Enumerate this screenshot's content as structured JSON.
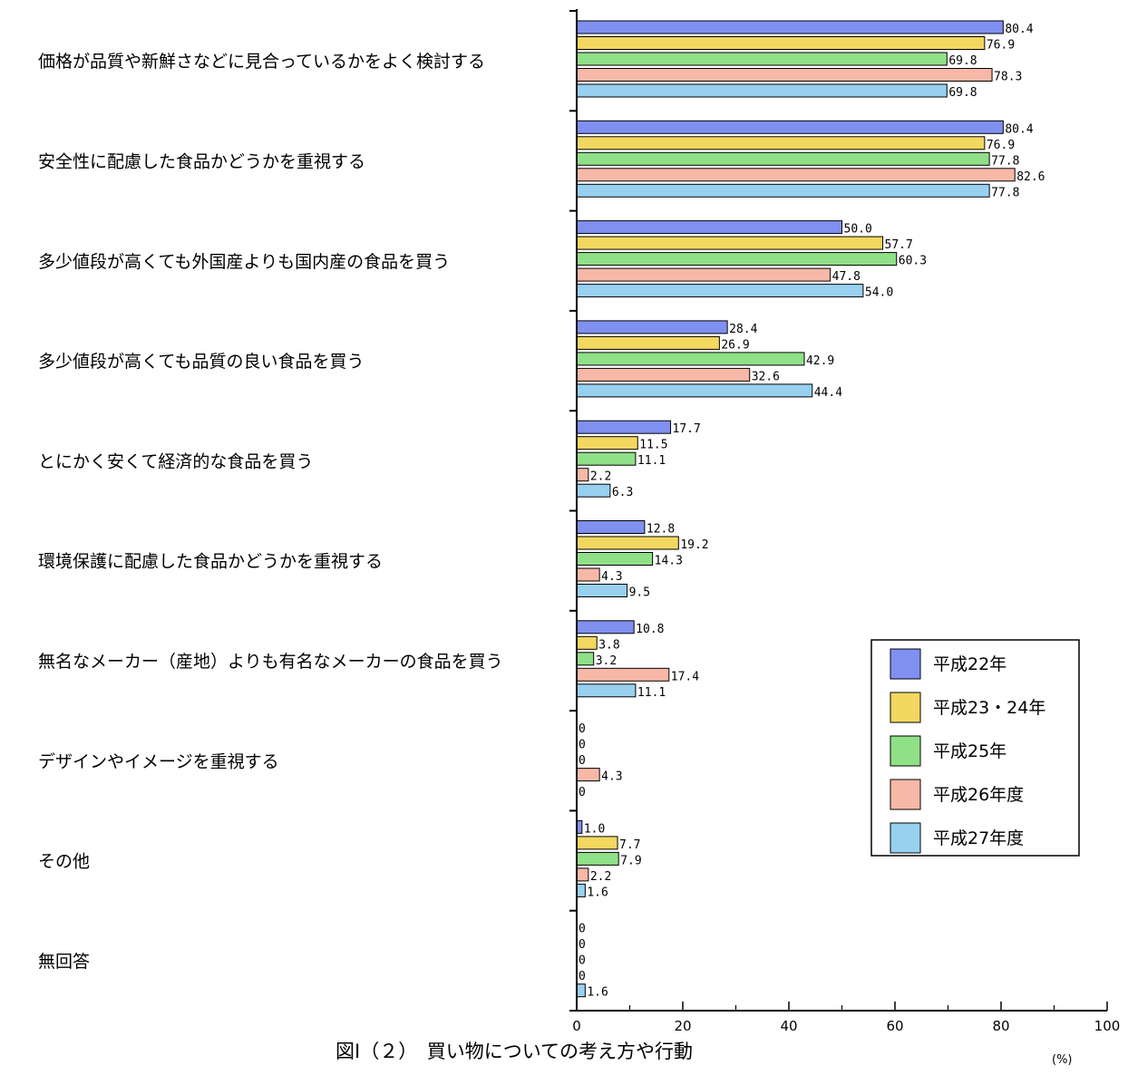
{
  "chart_data": {
    "type": "bar",
    "orientation": "horizontal",
    "title": "図Ⅰ（２）　買い物についての考え方や行動",
    "unit_label": "(%)",
    "xlim": [
      0,
      100
    ],
    "x_ticks": [
      "0",
      "20",
      "40",
      "60",
      "80",
      "100"
    ],
    "grid": false,
    "legend_position": "right",
    "categories": [
      "価格が品質や新鮮さなどに見合っているかをよく検討する",
      "安全性に配慮した食品かどうかを重視する",
      "多少値段が高くても外国産よりも国内産の食品を買う",
      "多少値段が高くても品質の良い食品を買う",
      "とにかく安くて経済的な食品を買う",
      "環境保護に配慮した食品かどうかを重視する",
      "無名なメーカー（産地）よりも有名なメーカーの食品を買う",
      "デザインやイメージを重視する",
      "その他",
      "無回答"
    ],
    "series": [
      {
        "name": "平成22年",
        "color": "#8090f0",
        "values": [
          80.4,
          80.4,
          50.0,
          28.4,
          17.7,
          12.8,
          10.8,
          0,
          1.0,
          0
        ],
        "labels": [
          "80.4",
          "80.4",
          "50.0",
          "28.4",
          "17.7",
          "12.8",
          "10.8",
          "0",
          "1.0",
          "0"
        ]
      },
      {
        "name": "平成23・24年",
        "color": "#f2d860",
        "values": [
          76.9,
          76.9,
          57.7,
          26.9,
          11.5,
          19.2,
          3.8,
          0,
          7.7,
          0
        ],
        "labels": [
          "76.9",
          "76.9",
          "57.7",
          "26.9",
          "11.5",
          "19.2",
          "3.8",
          "0",
          "7.7",
          "0"
        ]
      },
      {
        "name": "平成25年",
        "color": "#90e088",
        "values": [
          69.8,
          77.8,
          60.3,
          42.9,
          11.1,
          14.3,
          3.2,
          0,
          7.9,
          0
        ],
        "labels": [
          "69.8",
          "77.8",
          "60.3",
          "42.9",
          "11.1",
          "14.3",
          "3.2",
          "0",
          "7.9",
          "0"
        ]
      },
      {
        "name": "平成26年度",
        "color": "#f8b8a8",
        "values": [
          78.3,
          82.6,
          47.8,
          32.6,
          2.2,
          4.3,
          17.4,
          4.3,
          2.2,
          0
        ],
        "labels": [
          "78.3",
          "82.6",
          "47.8",
          "32.6",
          "2.2",
          "4.3",
          "17.4",
          "4.3",
          "2.2",
          "0"
        ]
      },
      {
        "name": "平成27年度",
        "color": "#98d0f0",
        "values": [
          69.8,
          77.8,
          54.0,
          44.4,
          6.3,
          9.5,
          11.1,
          0,
          1.6,
          1.6
        ],
        "labels": [
          "69.8",
          "77.8",
          "54.0",
          "44.4",
          "6.3",
          "9.5",
          "11.1",
          "0",
          "1.6",
          "1.6"
        ]
      }
    ]
  }
}
